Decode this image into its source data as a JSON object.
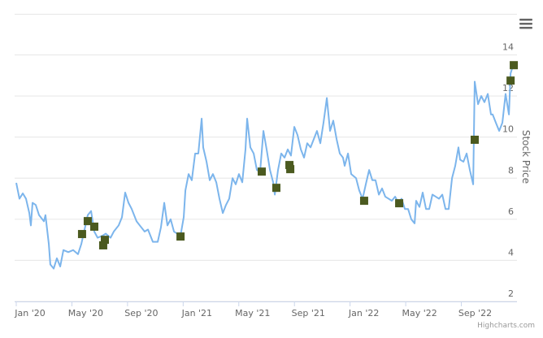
{
  "chart_data": {
    "type": "line",
    "y_axis_title": "Stock Price",
    "credits": "Highcharts.com",
    "xlim": [
      0,
      36
    ],
    "xticks": [
      {
        "value": 0,
        "label": "Jan '20"
      },
      {
        "value": 4,
        "label": "May '20"
      },
      {
        "value": 8,
        "label": "Sep '20"
      },
      {
        "value": 12,
        "label": "Jan '21"
      },
      {
        "value": 16,
        "label": "May '21"
      },
      {
        "value": 20,
        "label": "Sep '21"
      },
      {
        "value": 24,
        "label": "Jan '22"
      },
      {
        "value": 28,
        "label": "May '22"
      },
      {
        "value": 32,
        "label": "Sep '22"
      }
    ],
    "ylim": [
      2,
      16
    ],
    "yticks": [
      2,
      4,
      6,
      8,
      10,
      12,
      14
    ],
    "grid": true,
    "series": [
      {
        "type": "line",
        "color": "#7cb5ec",
        "x": [
          0,
          0.23,
          0.47,
          0.7,
          0.94,
          1.05,
          1.17,
          1.4,
          1.64,
          1.99,
          2.1,
          2.34,
          2.45,
          2.69,
          2.92,
          3.16,
          3.39,
          3.74,
          4.09,
          4.44,
          4.68,
          4.91,
          5.14,
          5.38,
          5.61,
          5.85,
          6.2,
          6.43,
          6.78,
          7.01,
          7.36,
          7.6,
          7.83,
          8.07,
          8.3,
          8.65,
          8.88,
          9.23,
          9.47,
          9.82,
          10.17,
          10.4,
          10.64,
          10.87,
          11.1,
          11.34,
          11.57,
          11.81,
          12.04,
          12.16,
          12.39,
          12.62,
          12.86,
          13.09,
          13.33,
          13.44,
          13.68,
          13.91,
          14.14,
          14.38,
          14.61,
          14.85,
          15.08,
          15.31,
          15.55,
          15.78,
          16.01,
          16.25,
          16.48,
          16.6,
          16.83,
          17.07,
          17.3,
          17.53,
          17.77,
          18.0,
          18.24,
          18.47,
          18.59,
          18.82,
          19.05,
          19.29,
          19.52,
          19.75,
          19.99,
          20.22,
          20.46,
          20.69,
          20.92,
          21.16,
          21.39,
          21.62,
          21.86,
          22.09,
          22.33,
          22.56,
          22.79,
          23.03,
          23.26,
          23.49,
          23.61,
          23.85,
          24.08,
          24.43,
          24.66,
          24.9,
          25.13,
          25.37,
          25.6,
          25.83,
          26.07,
          26.3,
          26.53,
          26.77,
          27.0,
          27.24,
          27.47,
          27.7,
          27.94,
          28.17,
          28.4,
          28.64,
          28.75,
          28.99,
          29.22,
          29.46,
          29.69,
          29.92,
          30.16,
          30.39,
          30.63,
          30.86,
          31.09,
          31.33,
          31.56,
          31.79,
          31.91,
          32.15,
          32.38,
          32.61,
          32.85,
          32.96,
          33.2,
          33.43,
          33.66,
          33.9,
          34.13,
          34.25,
          34.48,
          34.72,
          34.95,
          35.18,
          35.42,
          35.54,
          35.77
        ],
        "values": [
          7.77,
          7.0,
          7.26,
          7.0,
          6.3,
          5.7,
          6.8,
          6.7,
          6.2,
          5.9,
          6.2,
          4.8,
          3.8,
          3.6,
          4.1,
          3.7,
          4.5,
          4.4,
          4.5,
          4.3,
          4.8,
          5.5,
          6.2,
          6.4,
          5.4,
          5.1,
          5.2,
          5.3,
          5.1,
          5.4,
          5.7,
          6.1,
          7.3,
          6.8,
          6.5,
          5.9,
          5.7,
          5.4,
          5.5,
          4.9,
          4.9,
          5.6,
          6.8,
          5.7,
          6.0,
          5.4,
          5.3,
          5.2,
          6.1,
          7.4,
          8.2,
          7.9,
          9.2,
          9.2,
          10.9,
          9.5,
          8.8,
          7.9,
          8.2,
          7.8,
          7.0,
          6.3,
          6.7,
          7.0,
          8.0,
          7.7,
          8.2,
          7.8,
          9.4,
          10.9,
          9.5,
          9.2,
          8.4,
          8.3,
          10.3,
          9.4,
          8.4,
          7.8,
          7.2,
          8.4,
          9.2,
          9.0,
          9.4,
          9.1,
          10.5,
          10.1,
          9.4,
          9.0,
          9.7,
          9.5,
          9.9,
          10.3,
          9.7,
          10.7,
          11.9,
          10.3,
          10.8,
          9.9,
          9.2,
          9.0,
          8.6,
          9.2,
          8.2,
          8.0,
          7.4,
          7.0,
          7.7,
          8.4,
          7.9,
          7.9,
          7.2,
          7.5,
          7.1,
          7.0,
          6.9,
          7.1,
          6.8,
          7.0,
          6.5,
          6.5,
          6.0,
          5.8,
          6.9,
          6.6,
          7.3,
          6.5,
          6.5,
          7.2,
          7.1,
          7.0,
          7.2,
          6.5,
          6.5,
          8.0,
          8.6,
          9.5,
          8.9,
          8.8,
          9.2,
          8.4,
          7.7,
          12.7,
          11.6,
          12.0,
          11.7,
          12.1,
          11.1,
          11.1,
          10.7,
          10.3,
          10.7,
          12.1,
          11.1,
          13.1,
          13.6
        ]
      },
      {
        "type": "scatter",
        "marker": "square",
        "color": "#4b5a1f",
        "x": [
          4.73,
          5.14,
          5.61,
          6.25,
          6.37,
          11.81,
          17.65,
          18.7,
          19.64,
          19.7,
          25.01,
          27.53,
          32.96,
          35.54,
          35.77
        ],
        "values": [
          5.28,
          5.91,
          5.64,
          4.73,
          5.0,
          5.16,
          8.32,
          7.53,
          8.64,
          8.44,
          6.9,
          6.78,
          9.87,
          12.75,
          13.5
        ]
      }
    ]
  }
}
